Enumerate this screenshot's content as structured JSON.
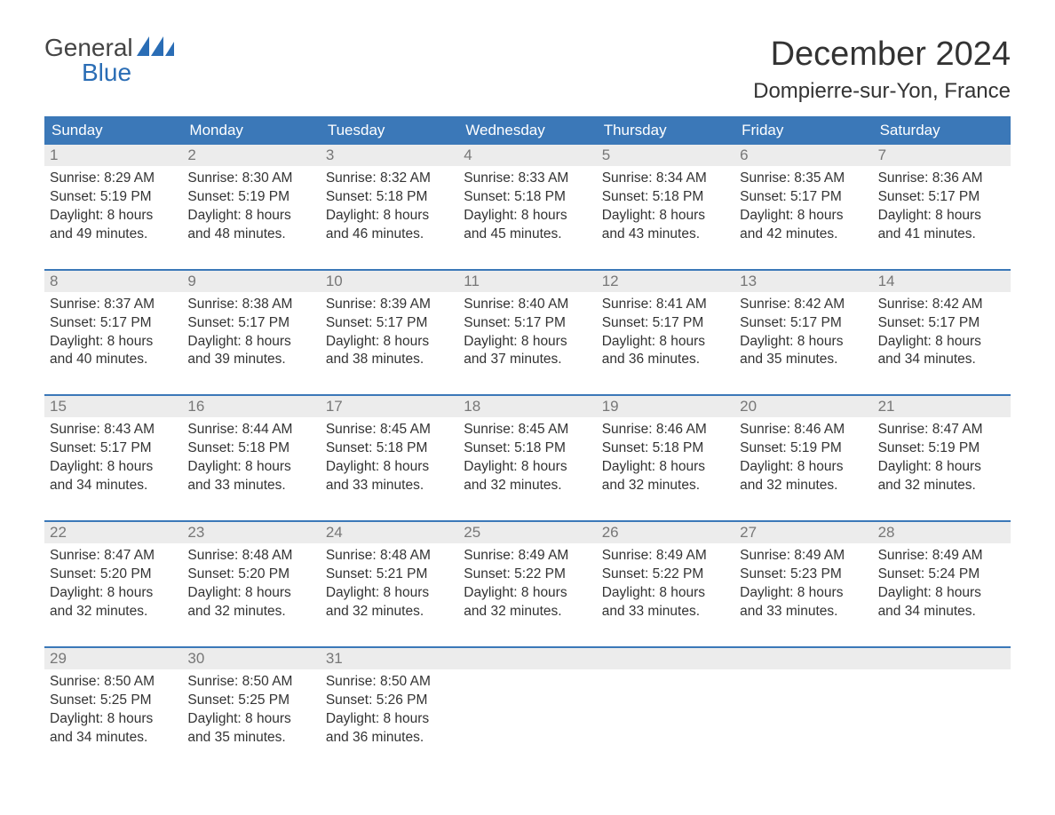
{
  "logo": {
    "line1": "General",
    "line2": "Blue"
  },
  "title": "December 2024",
  "location": "Dompierre-sur-Yon, France",
  "colors": {
    "header_bg": "#3b78b8",
    "header_text": "#ffffff",
    "daynum_bg": "#ececec",
    "daynum_text": "#777777",
    "body_text": "#333333",
    "week_border": "#3b78b8",
    "logo_blue": "#2a6db5"
  },
  "day_headers": [
    "Sunday",
    "Monday",
    "Tuesday",
    "Wednesday",
    "Thursday",
    "Friday",
    "Saturday"
  ],
  "weeks": [
    [
      {
        "num": "1",
        "sunrise": "8:29 AM",
        "sunset": "5:19 PM",
        "daylight": "8 hours and 49 minutes."
      },
      {
        "num": "2",
        "sunrise": "8:30 AM",
        "sunset": "5:19 PM",
        "daylight": "8 hours and 48 minutes."
      },
      {
        "num": "3",
        "sunrise": "8:32 AM",
        "sunset": "5:18 PM",
        "daylight": "8 hours and 46 minutes."
      },
      {
        "num": "4",
        "sunrise": "8:33 AM",
        "sunset": "5:18 PM",
        "daylight": "8 hours and 45 minutes."
      },
      {
        "num": "5",
        "sunrise": "8:34 AM",
        "sunset": "5:18 PM",
        "daylight": "8 hours and 43 minutes."
      },
      {
        "num": "6",
        "sunrise": "8:35 AM",
        "sunset": "5:17 PM",
        "daylight": "8 hours and 42 minutes."
      },
      {
        "num": "7",
        "sunrise": "8:36 AM",
        "sunset": "5:17 PM",
        "daylight": "8 hours and 41 minutes."
      }
    ],
    [
      {
        "num": "8",
        "sunrise": "8:37 AM",
        "sunset": "5:17 PM",
        "daylight": "8 hours and 40 minutes."
      },
      {
        "num": "9",
        "sunrise": "8:38 AM",
        "sunset": "5:17 PM",
        "daylight": "8 hours and 39 minutes."
      },
      {
        "num": "10",
        "sunrise": "8:39 AM",
        "sunset": "5:17 PM",
        "daylight": "8 hours and 38 minutes."
      },
      {
        "num": "11",
        "sunrise": "8:40 AM",
        "sunset": "5:17 PM",
        "daylight": "8 hours and 37 minutes."
      },
      {
        "num": "12",
        "sunrise": "8:41 AM",
        "sunset": "5:17 PM",
        "daylight": "8 hours and 36 minutes."
      },
      {
        "num": "13",
        "sunrise": "8:42 AM",
        "sunset": "5:17 PM",
        "daylight": "8 hours and 35 minutes."
      },
      {
        "num": "14",
        "sunrise": "8:42 AM",
        "sunset": "5:17 PM",
        "daylight": "8 hours and 34 minutes."
      }
    ],
    [
      {
        "num": "15",
        "sunrise": "8:43 AM",
        "sunset": "5:17 PM",
        "daylight": "8 hours and 34 minutes."
      },
      {
        "num": "16",
        "sunrise": "8:44 AM",
        "sunset": "5:18 PM",
        "daylight": "8 hours and 33 minutes."
      },
      {
        "num": "17",
        "sunrise": "8:45 AM",
        "sunset": "5:18 PM",
        "daylight": "8 hours and 33 minutes."
      },
      {
        "num": "18",
        "sunrise": "8:45 AM",
        "sunset": "5:18 PM",
        "daylight": "8 hours and 32 minutes."
      },
      {
        "num": "19",
        "sunrise": "8:46 AM",
        "sunset": "5:18 PM",
        "daylight": "8 hours and 32 minutes."
      },
      {
        "num": "20",
        "sunrise": "8:46 AM",
        "sunset": "5:19 PM",
        "daylight": "8 hours and 32 minutes."
      },
      {
        "num": "21",
        "sunrise": "8:47 AM",
        "sunset": "5:19 PM",
        "daylight": "8 hours and 32 minutes."
      }
    ],
    [
      {
        "num": "22",
        "sunrise": "8:47 AM",
        "sunset": "5:20 PM",
        "daylight": "8 hours and 32 minutes."
      },
      {
        "num": "23",
        "sunrise": "8:48 AM",
        "sunset": "5:20 PM",
        "daylight": "8 hours and 32 minutes."
      },
      {
        "num": "24",
        "sunrise": "8:48 AM",
        "sunset": "5:21 PM",
        "daylight": "8 hours and 32 minutes."
      },
      {
        "num": "25",
        "sunrise": "8:49 AM",
        "sunset": "5:22 PM",
        "daylight": "8 hours and 32 minutes."
      },
      {
        "num": "26",
        "sunrise": "8:49 AM",
        "sunset": "5:22 PM",
        "daylight": "8 hours and 33 minutes."
      },
      {
        "num": "27",
        "sunrise": "8:49 AM",
        "sunset": "5:23 PM",
        "daylight": "8 hours and 33 minutes."
      },
      {
        "num": "28",
        "sunrise": "8:49 AM",
        "sunset": "5:24 PM",
        "daylight": "8 hours and 34 minutes."
      }
    ],
    [
      {
        "num": "29",
        "sunrise": "8:50 AM",
        "sunset": "5:25 PM",
        "daylight": "8 hours and 34 minutes."
      },
      {
        "num": "30",
        "sunrise": "8:50 AM",
        "sunset": "5:25 PM",
        "daylight": "8 hours and 35 minutes."
      },
      {
        "num": "31",
        "sunrise": "8:50 AM",
        "sunset": "5:26 PM",
        "daylight": "8 hours and 36 minutes."
      },
      null,
      null,
      null,
      null
    ]
  ],
  "labels": {
    "sunrise": "Sunrise: ",
    "sunset": "Sunset: ",
    "daylight": "Daylight: "
  }
}
